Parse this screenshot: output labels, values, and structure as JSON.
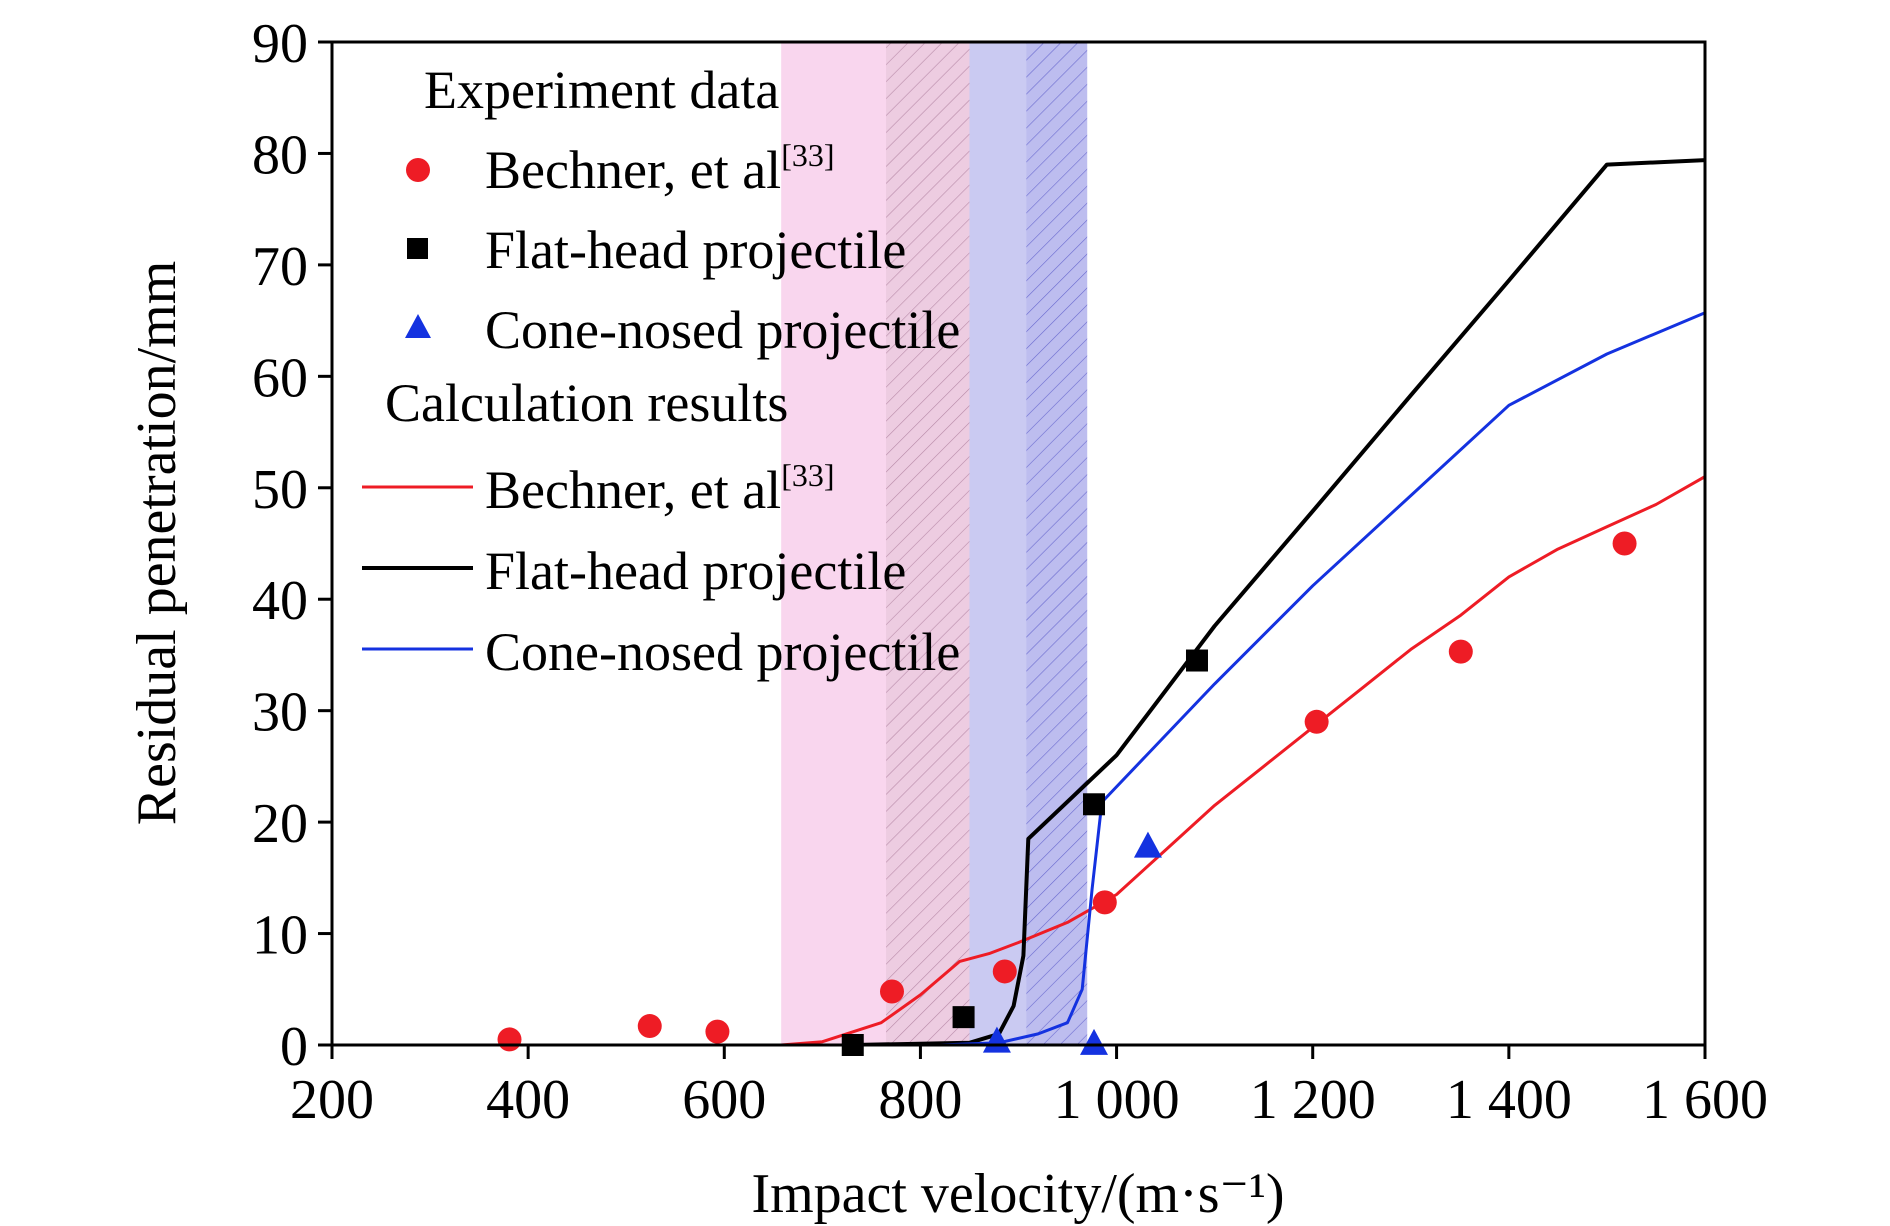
{
  "chart_data": {
    "type": "scatter",
    "xlabel": "Impact velocity/(m·s⁻¹)",
    "ylabel": "Residual penetration/mm",
    "xlim": [
      200,
      1600
    ],
    "ylim": [
      0,
      90
    ],
    "x_ticks": [
      200,
      400,
      600,
      800,
      1000,
      1200,
      1400,
      1600
    ],
    "x_tick_labels": [
      "200",
      "400",
      "600",
      "800",
      "1 000",
      "1 200",
      "1 400",
      "1 600"
    ],
    "y_ticks": [
      0,
      10,
      20,
      30,
      40,
      50,
      60,
      70,
      80,
      90
    ],
    "y_tick_labels": [
      "0",
      "10",
      "20",
      "30",
      "40",
      "50",
      "60",
      "70",
      "80",
      "90"
    ],
    "grid": false,
    "legend_position": "top-left",
    "shaded_regions": [
      {
        "x0": 658,
        "x1": 850,
        "color": "#f7c8e8",
        "hatch": false
      },
      {
        "x0": 765,
        "x1": 850,
        "color": "#e8c8dc",
        "hatch": true
      },
      {
        "x0": 850,
        "x1": 970,
        "color": "#b8b8ee",
        "hatch": false
      },
      {
        "x0": 908,
        "x1": 970,
        "color": "#b8b8ee",
        "hatch": true
      }
    ],
    "legend": {
      "experiment_heading": "Experiment data",
      "calculation_heading": "Calculation results",
      "entries": [
        {
          "label": "Bechner, et al",
          "sup": "[33]"
        },
        {
          "label": "Flat-head projectile",
          "sup": ""
        },
        {
          "label": "Cone-nosed projectile",
          "sup": ""
        }
      ]
    },
    "scatter_series": [
      {
        "color": "#ee1c25",
        "marker": "circle",
        "points": [
          [
            381,
            0.5
          ],
          [
            524,
            1.7
          ],
          [
            593,
            1.2
          ],
          [
            771,
            4.8
          ],
          [
            886,
            6.6
          ],
          [
            988,
            12.8
          ],
          [
            1204,
            29
          ],
          [
            1351,
            35.3
          ],
          [
            1518,
            45
          ]
        ]
      },
      {
        "color": "#000000",
        "marker": "square",
        "points": [
          [
            731,
            0
          ],
          [
            844,
            2.5
          ],
          [
            977,
            21.6
          ],
          [
            1082,
            34.5
          ]
        ]
      },
      {
        "color": "#1432e0",
        "marker": "triangle",
        "points": [
          [
            878,
            0.3
          ],
          [
            977,
            0.1
          ],
          [
            1032,
            17.8
          ]
        ]
      }
    ],
    "line_series": [
      {
        "color": "#ee1c25",
        "points": [
          [
            658,
            0
          ],
          [
            700,
            0.3
          ],
          [
            760,
            2.0
          ],
          [
            800,
            4.5
          ],
          [
            840,
            7.5
          ],
          [
            870,
            8.2
          ],
          [
            900,
            9.2
          ],
          [
            950,
            11.0
          ],
          [
            1000,
            13.5
          ],
          [
            1050,
            17.5
          ],
          [
            1100,
            21.5
          ],
          [
            1150,
            25.0
          ],
          [
            1200,
            28.5
          ],
          [
            1250,
            32.0
          ],
          [
            1300,
            35.5
          ],
          [
            1350,
            38.5
          ],
          [
            1400,
            42.0
          ],
          [
            1450,
            44.5
          ],
          [
            1500,
            46.5
          ],
          [
            1550,
            48.5
          ],
          [
            1600,
            51.0
          ]
        ]
      },
      {
        "color": "#000000",
        "points": [
          [
            731,
            0
          ],
          [
            850,
            0.2
          ],
          [
            880,
            1.0
          ],
          [
            895,
            3.5
          ],
          [
            905,
            8.0
          ],
          [
            910,
            18.5
          ],
          [
            1000,
            26.0
          ],
          [
            1100,
            37.6
          ],
          [
            1200,
            47.9
          ],
          [
            1300,
            58.3
          ],
          [
            1400,
            68.6
          ],
          [
            1500,
            79.0
          ],
          [
            1600,
            79.4
          ]
        ]
      },
      {
        "color": "#1432e0",
        "points": [
          [
            731,
            0
          ],
          [
            820,
            0.0
          ],
          [
            880,
            0.2
          ],
          [
            920,
            1.0
          ],
          [
            950,
            2.0
          ],
          [
            965,
            5.0
          ],
          [
            975,
            14.0
          ],
          [
            985,
            21.8
          ],
          [
            1100,
            32.4
          ],
          [
            1200,
            41.2
          ],
          [
            1300,
            49.3
          ],
          [
            1400,
            57.4
          ],
          [
            1500,
            62.0
          ],
          [
            1600,
            65.7
          ]
        ]
      }
    ]
  }
}
